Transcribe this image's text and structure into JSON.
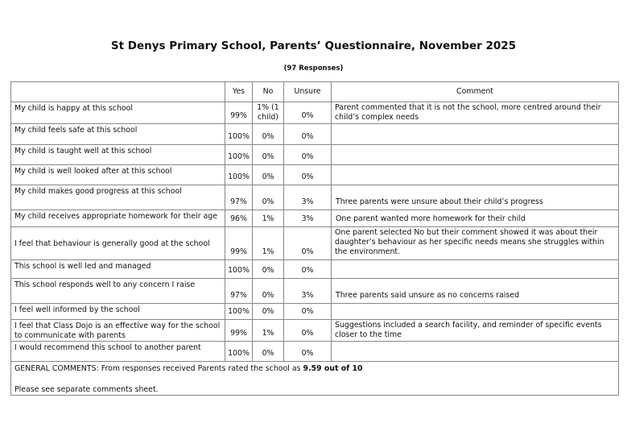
{
  "title": "St Denys Primary School, Parents’ Questionnaire, November 2025",
  "subtitle": "(97 Responses)",
  "headers": {
    "question": "",
    "yes": "Yes",
    "no": "No",
    "unsure": "Unsure",
    "comment": "Comment"
  },
  "rows": [
    {
      "question": "My child is happy at this school",
      "yes": "99%",
      "no": "1% (1 child)",
      "unsure": "0%",
      "comment": "Parent commented that it is not the school, more centred around their child’s complex needs"
    },
    {
      "question": "My child feels safe at this school",
      "yes": "100%",
      "no": "0%",
      "unsure": "0%",
      "comment": ""
    },
    {
      "question": "My child is taught well at this school",
      "yes": "100%",
      "no": "0%",
      "unsure": "0%",
      "comment": ""
    },
    {
      "question": "My child is well looked after at this school",
      "yes": "100%",
      "no": "0%",
      "unsure": "0%",
      "comment": ""
    },
    {
      "question": "My child makes good progress at this school",
      "yes": "97%",
      "no": "0%",
      "unsure": "3%",
      "comment": "Three parents were unsure about their child’s progress"
    },
    {
      "question": "My child receives appropriate homework for their age",
      "yes": "96%",
      "no": "1%",
      "unsure": "3%",
      "comment": "One parent wanted more homework for their child"
    },
    {
      "question": "I feel that behaviour is generally good at the school",
      "yes": "99%",
      "no": "1%",
      "unsure": "0%",
      "comment": "One parent selected No but their comment showed it was about their daughter’s behaviour as her specific needs means she struggles within the environment."
    },
    {
      "question": "This school is well led and managed",
      "yes": "100%",
      "no": "0%",
      "unsure": "0%",
      "comment": ""
    },
    {
      "question": "This school responds well to any concern I raise",
      "yes": "97%",
      "no": "0%",
      "unsure": "3%",
      "comment": "Three parents said unsure as no concerns raised"
    },
    {
      "question": "I feel well informed by the school",
      "yes": "100%",
      "no": "0%",
      "unsure": "0%",
      "comment": ""
    },
    {
      "question": "I feel that Class Dojo is an effective way for the school to communicate with parents",
      "yes": "99%",
      "no": "1%",
      "unsure": "0%",
      "comment": "Suggestions included a search facility, and reminder of specific events closer to the time"
    },
    {
      "question": "I would recommend this school to another parent",
      "yes": "100%",
      "no": "0%",
      "unsure": "0%",
      "comment": ""
    }
  ],
  "general": {
    "prefix": "GENERAL COMMENTS: From responses received Parents rated the school as ",
    "rating": "9.59 out of 10",
    "note": "Please see separate comments sheet."
  }
}
